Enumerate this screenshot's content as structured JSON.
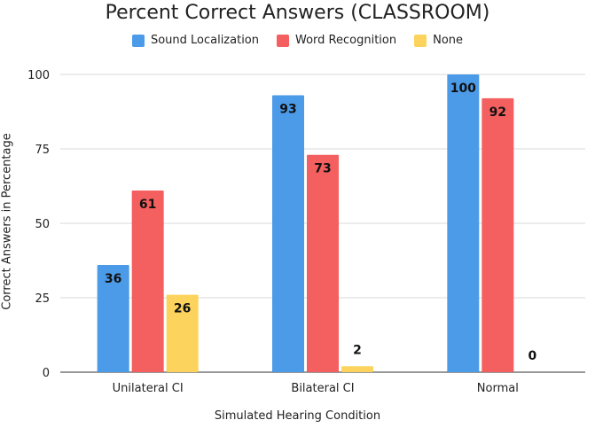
{
  "chart_data": {
    "type": "bar",
    "title": "Percent Correct Answers (CLASSROOM)",
    "xlabel": "Simulated Hearing Condition",
    "ylabel": "Correct Answers in Percentage",
    "categories": [
      "Unilateral CI",
      "Bilateral CI",
      "Normal"
    ],
    "series": [
      {
        "name": "Sound Localization",
        "color": "#4c9be8",
        "values": [
          36,
          93,
          100
        ]
      },
      {
        "name": "Word Recognition",
        "color": "#f45f5f",
        "values": [
          61,
          73,
          92
        ]
      },
      {
        "name": "None",
        "color": "#fcd35c",
        "values": [
          26,
          2,
          0
        ]
      }
    ],
    "ylim": [
      0,
      100
    ],
    "yticks": [
      0,
      25,
      50,
      75,
      100
    ],
    "grid": true,
    "legend": "top"
  }
}
